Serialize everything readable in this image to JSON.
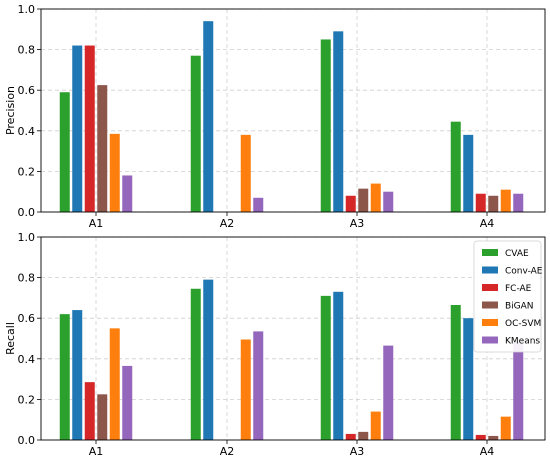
{
  "chart_data": [
    {
      "type": "bar",
      "xlabel": "",
      "ylabel": "Precision",
      "ylim": [
        0,
        1.0
      ],
      "yticks": [
        "0.0",
        "0.2",
        "0.4",
        "0.6",
        "0.8",
        "1.0"
      ],
      "grid": true,
      "categories": [
        "A1",
        "A2",
        "A3",
        "A4"
      ],
      "series": [
        {
          "name": "CVAE",
          "values": [
            0.59,
            0.77,
            0.85,
            0.445
          ],
          "color": "#2ca02c"
        },
        {
          "name": "Conv-AE",
          "values": [
            0.82,
            0.94,
            0.89,
            0.38
          ],
          "color": "#1f77b4"
        },
        {
          "name": "FC-AE",
          "values": [
            0.82,
            0.0,
            0.08,
            0.09
          ],
          "color": "#d62728"
        },
        {
          "name": "BiGAN",
          "values": [
            0.625,
            0.0,
            0.115,
            0.08
          ],
          "color": "#8c564b"
        },
        {
          "name": "OC-SVM",
          "values": [
            0.385,
            0.38,
            0.14,
            0.11
          ],
          "color": "#ff7f0e"
        },
        {
          "name": "KMeans",
          "values": [
            0.18,
            0.07,
            0.1,
            0.09
          ],
          "color": "#9467bd"
        }
      ]
    },
    {
      "type": "bar",
      "xlabel": "",
      "ylabel": "Recall",
      "ylim": [
        0,
        1.0
      ],
      "yticks": [
        "0.0",
        "0.2",
        "0.4",
        "0.6",
        "0.8",
        "1.0"
      ],
      "grid": true,
      "legend_position": "top-right",
      "categories": [
        "A1",
        "A2",
        "A3",
        "A4"
      ],
      "series": [
        {
          "name": "CVAE",
          "values": [
            0.62,
            0.745,
            0.71,
            0.665
          ],
          "color": "#2ca02c"
        },
        {
          "name": "Conv-AE",
          "values": [
            0.64,
            0.79,
            0.73,
            0.6
          ],
          "color": "#1f77b4"
        },
        {
          "name": "FC-AE",
          "values": [
            0.285,
            0.0,
            0.03,
            0.025
          ],
          "color": "#d62728"
        },
        {
          "name": "BiGAN",
          "values": [
            0.225,
            0.0,
            0.04,
            0.02
          ],
          "color": "#8c564b"
        },
        {
          "name": "OC-SVM",
          "values": [
            0.55,
            0.495,
            0.14,
            0.115
          ],
          "color": "#ff7f0e"
        },
        {
          "name": "KMeans",
          "values": [
            0.365,
            0.535,
            0.465,
            0.48
          ],
          "color": "#9467bd"
        }
      ]
    }
  ]
}
